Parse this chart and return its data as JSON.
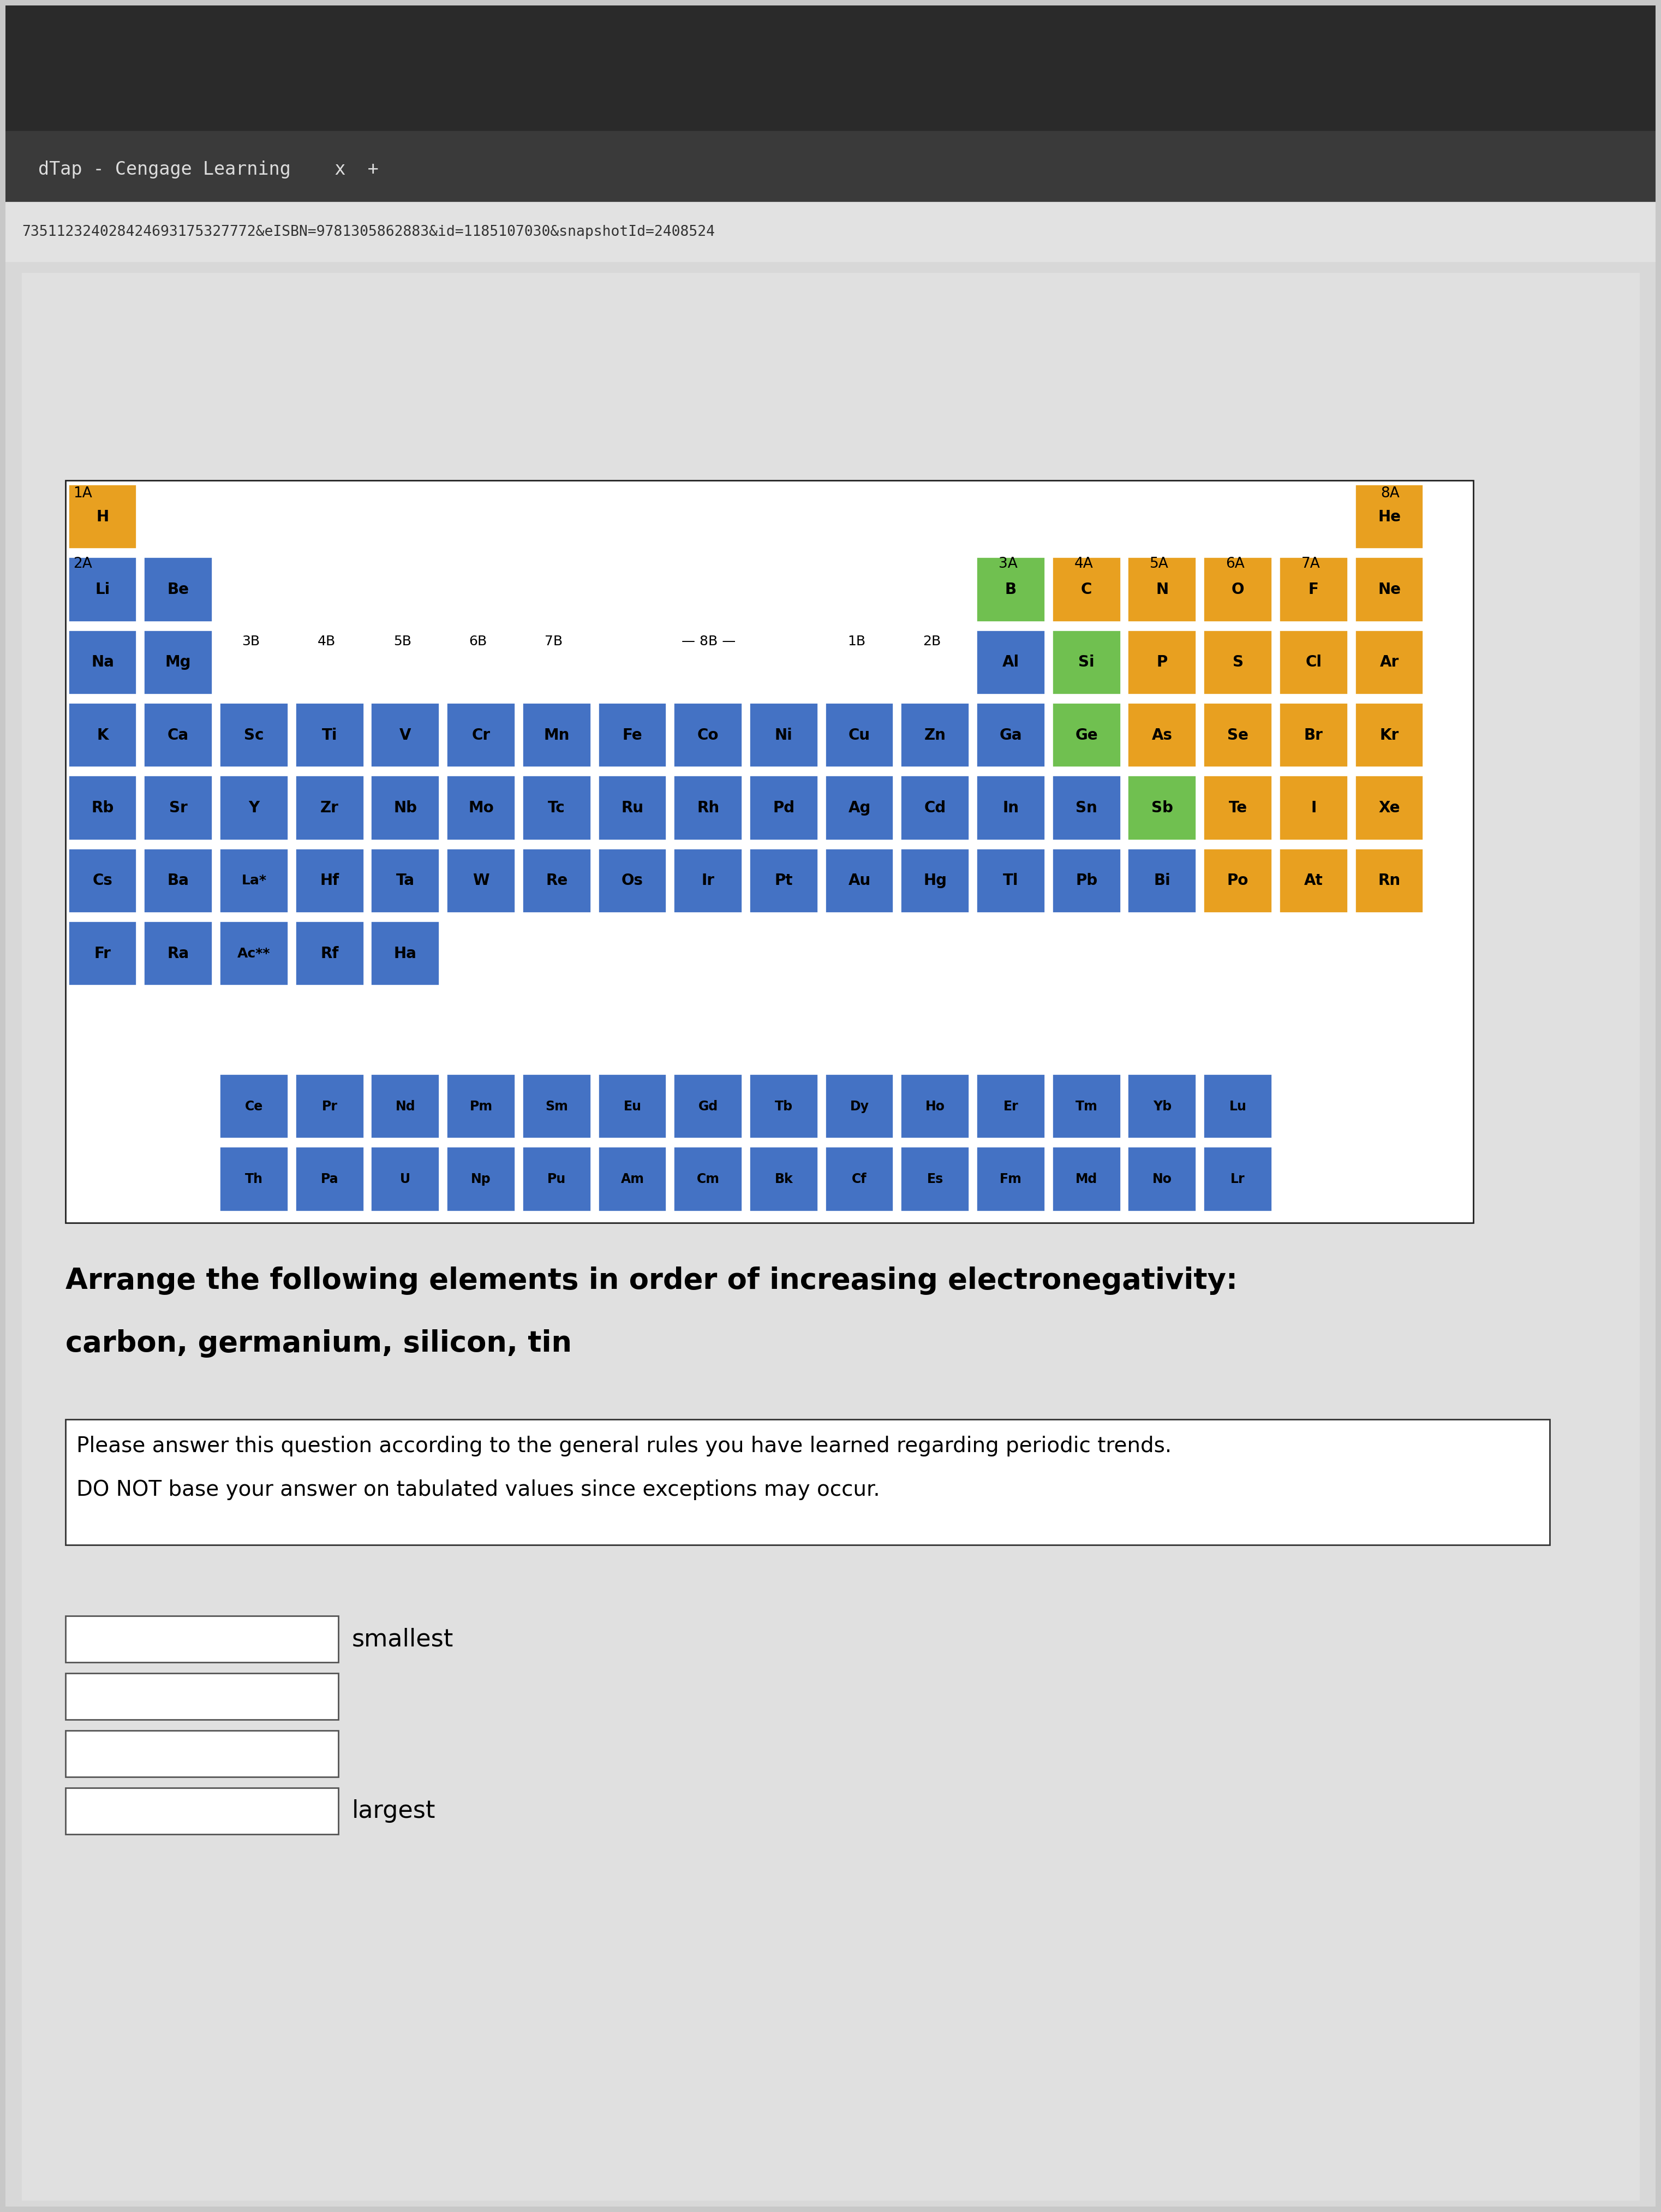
{
  "title_bar_text": "dTap - Cengage Learning    x  +",
  "url_text": "735112324028424693175327772&eISBN=9781305862883&id=1185107030&snapshotId=2408524",
  "question_text": "Arrange the following elements in order of increasing electronegativity:",
  "elements_text": "carbon, germanium, silicon, tin",
  "note_line1": "Please answer this question according to the general rules you have learned regarding periodic trends.",
  "note_line2": "DO NOT base your answer on tabulated values since exceptions may occur.",
  "smallest_label": "smallest",
  "largest_label": "largest",
  "color_blue": "#4472c4",
  "color_orange": "#e8a020",
  "color_green": "#70c050",
  "lanthanides": [
    "Ce",
    "Pr",
    "Nd",
    "Pm",
    "Sm",
    "Eu",
    "Gd",
    "Tb",
    "Dy",
    "Ho",
    "Er",
    "Tm",
    "Yb",
    "Lu"
  ],
  "actinides": [
    "Th",
    "Pa",
    "U",
    "Np",
    "Pu",
    "Am",
    "Cm",
    "Bk",
    "Cf",
    "Es",
    "Fm",
    "Md",
    "No",
    "Lr"
  ],
  "row0": [
    [
      "H",
      1,
      "orange"
    ],
    [
      "He",
      18,
      "orange"
    ]
  ],
  "row1": [
    [
      "Li",
      1,
      "blue"
    ],
    [
      "Be",
      2,
      "blue"
    ],
    [
      "B",
      13,
      "green"
    ],
    [
      "C",
      14,
      "orange"
    ],
    [
      "N",
      15,
      "orange"
    ],
    [
      "O",
      16,
      "orange"
    ],
    [
      "F",
      17,
      "orange"
    ],
    [
      "Ne",
      18,
      "orange"
    ]
  ],
  "row2": [
    [
      "Na",
      1,
      "blue"
    ],
    [
      "Mg",
      2,
      "blue"
    ],
    [
      "Al",
      13,
      "blue"
    ],
    [
      "Si",
      14,
      "green"
    ],
    [
      "P",
      15,
      "orange"
    ],
    [
      "S",
      16,
      "orange"
    ],
    [
      "Cl",
      17,
      "orange"
    ],
    [
      "Ar",
      18,
      "orange"
    ]
  ],
  "row3": [
    [
      "K",
      1,
      "blue"
    ],
    [
      "Ca",
      2,
      "blue"
    ],
    [
      "Sc",
      3,
      "blue"
    ],
    [
      "Ti",
      4,
      "blue"
    ],
    [
      "V",
      5,
      "blue"
    ],
    [
      "Cr",
      6,
      "blue"
    ],
    [
      "Mn",
      7,
      "blue"
    ],
    [
      "Fe",
      8,
      "blue"
    ],
    [
      "Co",
      9,
      "blue"
    ],
    [
      "Ni",
      10,
      "blue"
    ],
    [
      "Cu",
      11,
      "blue"
    ],
    [
      "Zn",
      12,
      "blue"
    ],
    [
      "Ga",
      13,
      "blue"
    ],
    [
      "Ge",
      14,
      "green"
    ],
    [
      "As",
      15,
      "orange"
    ],
    [
      "Se",
      16,
      "orange"
    ],
    [
      "Br",
      17,
      "orange"
    ],
    [
      "Kr",
      18,
      "orange"
    ]
  ],
  "row4": [
    [
      "Rb",
      1,
      "blue"
    ],
    [
      "Sr",
      2,
      "blue"
    ],
    [
      "Y",
      3,
      "blue"
    ],
    [
      "Zr",
      4,
      "blue"
    ],
    [
      "Nb",
      5,
      "blue"
    ],
    [
      "Mo",
      6,
      "blue"
    ],
    [
      "Tc",
      7,
      "blue"
    ],
    [
      "Ru",
      8,
      "blue"
    ],
    [
      "Rh",
      9,
      "blue"
    ],
    [
      "Pd",
      10,
      "blue"
    ],
    [
      "Ag",
      11,
      "blue"
    ],
    [
      "Cd",
      12,
      "blue"
    ],
    [
      "In",
      13,
      "blue"
    ],
    [
      "Sn",
      14,
      "blue"
    ],
    [
      "Sb",
      15,
      "green"
    ],
    [
      "Te",
      16,
      "orange"
    ],
    [
      "I",
      17,
      "orange"
    ],
    [
      "Xe",
      18,
      "orange"
    ]
  ],
  "row5": [
    [
      "Cs",
      1,
      "blue"
    ],
    [
      "Ba",
      2,
      "blue"
    ],
    [
      "La*",
      3,
      "blue"
    ],
    [
      "Hf",
      4,
      "blue"
    ],
    [
      "Ta",
      5,
      "blue"
    ],
    [
      "W",
      6,
      "blue"
    ],
    [
      "Re",
      7,
      "blue"
    ],
    [
      "Os",
      8,
      "blue"
    ],
    [
      "Ir",
      9,
      "blue"
    ],
    [
      "Pt",
      10,
      "blue"
    ],
    [
      "Au",
      11,
      "blue"
    ],
    [
      "Hg",
      12,
      "blue"
    ],
    [
      "Tl",
      13,
      "blue"
    ],
    [
      "Pb",
      14,
      "blue"
    ],
    [
      "Bi",
      15,
      "blue"
    ],
    [
      "Po",
      16,
      "orange"
    ],
    [
      "At",
      17,
      "orange"
    ],
    [
      "Rn",
      18,
      "orange"
    ]
  ],
  "row6": [
    [
      "Fr",
      1,
      "blue"
    ],
    [
      "Ra",
      2,
      "blue"
    ],
    [
      "Ac**",
      3,
      "blue"
    ],
    [
      "Rf",
      4,
      "blue"
    ],
    [
      "Ha",
      5,
      "blue"
    ]
  ]
}
